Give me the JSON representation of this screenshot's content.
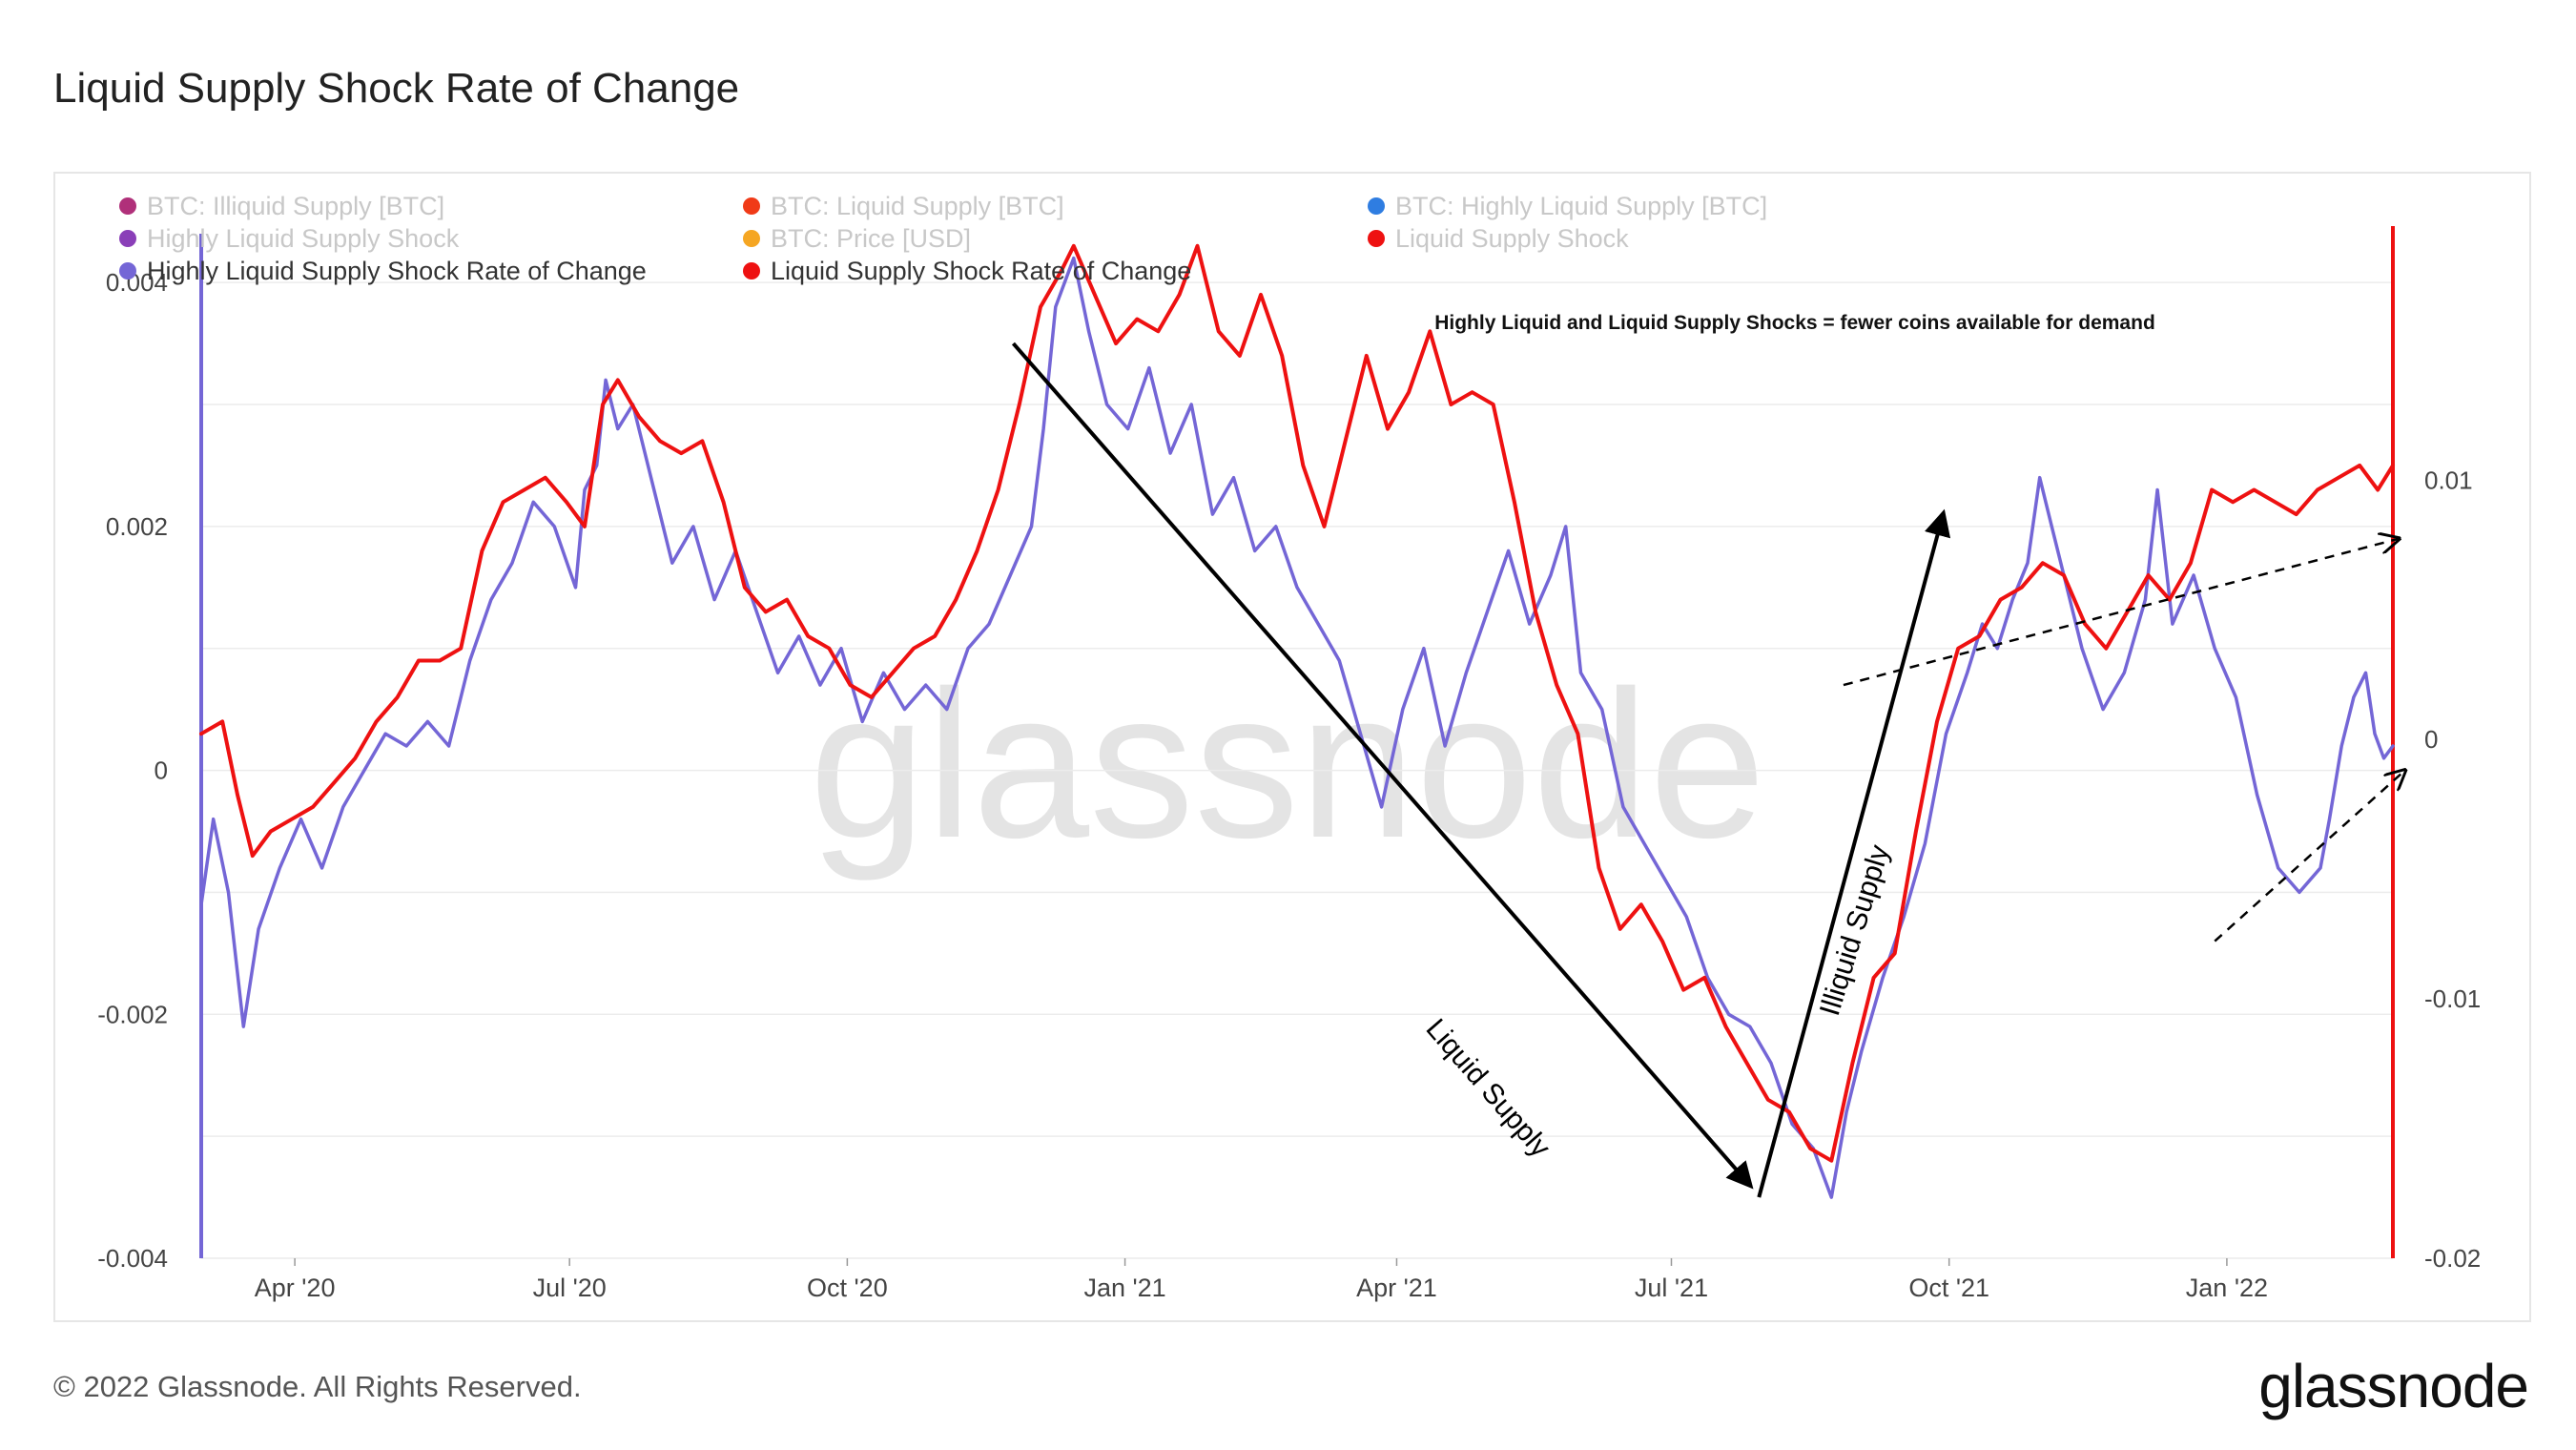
{
  "page": {
    "title": "Liquid Supply Shock Rate of Change",
    "copyright": "© 2022 Glassnode. All Rights Reserved.",
    "logo_text": "glassnode",
    "watermark": "glassnode"
  },
  "chart_data": {
    "type": "line",
    "title": "Liquid Supply Shock Rate of Change",
    "annotation_text": "Highly Liquid and Liquid Supply Shocks = fewer coins available for demand",
    "arrow_labels": [
      "Liquid Supply",
      "Illiquid Supply"
    ],
    "legend": [
      {
        "label": "BTC: Illiquid Supply [BTC]",
        "color": "#b0307a",
        "active": false
      },
      {
        "label": "BTC: Liquid Supply [BTC]",
        "color": "#f03a17",
        "active": false
      },
      {
        "label": "BTC: Highly Liquid Supply [BTC]",
        "color": "#2f7de1",
        "active": false
      },
      {
        "label": "Highly Liquid Supply Shock",
        "color": "#8a3fb8",
        "active": false
      },
      {
        "label": "BTC: Price [USD]",
        "color": "#f5a623",
        "active": false
      },
      {
        "label": "Liquid Supply Shock",
        "color": "#ee1111",
        "active": false
      },
      {
        "label": "Highly Liquid Supply Shock Rate of Change",
        "color": "#7466d6",
        "active": true
      },
      {
        "label": "Liquid Supply Shock Rate of Change",
        "color": "#ee1111",
        "active": true
      }
    ],
    "x_ticks": [
      "Apr '20",
      "Jul '20",
      "Oct '20",
      "Jan '21",
      "Apr '21",
      "Jul '21",
      "Oct '21",
      "Jan '22"
    ],
    "x_tick_dates": [
      "2020-04-01",
      "2020-07-01",
      "2020-10-01",
      "2021-01-01",
      "2021-04-01",
      "2021-07-01",
      "2021-10-01",
      "2022-01-01"
    ],
    "x_range": [
      "2020-03-01",
      "2022-02-25"
    ],
    "y_left": {
      "ticks": [
        "0.004",
        "0.002",
        "0",
        "-0.002",
        "-0.004"
      ],
      "tick_values": [
        0.004,
        0.002,
        0,
        -0.002,
        -0.004
      ],
      "range": [
        -0.004,
        0.0044
      ]
    },
    "y_right": {
      "ticks": [
        "0.01",
        "0",
        "-0.01",
        "-0.02"
      ],
      "tick_values": [
        0.01,
        0,
        -0.01,
        -0.02
      ],
      "range": [
        -0.02,
        0.0195
      ]
    },
    "series": [
      {
        "name": "Highly Liquid Supply Shock Rate of Change",
        "color": "#7466d6",
        "axis": "left",
        "points": [
          [
            "2020-03-01",
            -0.0011
          ],
          [
            "2020-03-05",
            -0.0004
          ],
          [
            "2020-03-10",
            -0.001
          ],
          [
            "2020-03-15",
            -0.0021
          ],
          [
            "2020-03-20",
            -0.0013
          ],
          [
            "2020-03-27",
            -0.0008
          ],
          [
            "2020-04-03",
            -0.0004
          ],
          [
            "2020-04-10",
            -0.0008
          ],
          [
            "2020-04-17",
            -0.0003
          ],
          [
            "2020-04-24",
            0.0
          ],
          [
            "2020-05-01",
            0.0003
          ],
          [
            "2020-05-08",
            0.0002
          ],
          [
            "2020-05-15",
            0.0004
          ],
          [
            "2020-05-22",
            0.0002
          ],
          [
            "2020-05-29",
            0.0009
          ],
          [
            "2020-06-05",
            0.0014
          ],
          [
            "2020-06-12",
            0.0017
          ],
          [
            "2020-06-19",
            0.0022
          ],
          [
            "2020-06-26",
            0.002
          ],
          [
            "2020-07-03",
            0.0015
          ],
          [
            "2020-07-06",
            0.0023
          ],
          [
            "2020-07-10",
            0.0025
          ],
          [
            "2020-07-13",
            0.0032
          ],
          [
            "2020-07-17",
            0.0028
          ],
          [
            "2020-07-22",
            0.003
          ],
          [
            "2020-07-28",
            0.0024
          ],
          [
            "2020-08-04",
            0.0017
          ],
          [
            "2020-08-11",
            0.002
          ],
          [
            "2020-08-18",
            0.0014
          ],
          [
            "2020-08-25",
            0.0018
          ],
          [
            "2020-09-01",
            0.0013
          ],
          [
            "2020-09-08",
            0.0008
          ],
          [
            "2020-09-15",
            0.0011
          ],
          [
            "2020-09-22",
            0.0007
          ],
          [
            "2020-09-29",
            0.001
          ],
          [
            "2020-10-06",
            0.0004
          ],
          [
            "2020-10-13",
            0.0008
          ],
          [
            "2020-10-20",
            0.0005
          ],
          [
            "2020-10-27",
            0.0007
          ],
          [
            "2020-11-03",
            0.0005
          ],
          [
            "2020-11-10",
            0.001
          ],
          [
            "2020-11-17",
            0.0012
          ],
          [
            "2020-11-24",
            0.0016
          ],
          [
            "2020-12-01",
            0.002
          ],
          [
            "2020-12-05",
            0.0028
          ],
          [
            "2020-12-09",
            0.0038
          ],
          [
            "2020-12-12",
            0.004
          ],
          [
            "2020-12-15",
            0.0042
          ],
          [
            "2020-12-20",
            0.0036
          ],
          [
            "2020-12-26",
            0.003
          ],
          [
            "2021-01-02",
            0.0028
          ],
          [
            "2021-01-09",
            0.0033
          ],
          [
            "2021-01-16",
            0.0026
          ],
          [
            "2021-01-23",
            0.003
          ],
          [
            "2021-01-30",
            0.0021
          ],
          [
            "2021-02-06",
            0.0024
          ],
          [
            "2021-02-13",
            0.0018
          ],
          [
            "2021-02-20",
            0.002
          ],
          [
            "2021-02-27",
            0.0015
          ],
          [
            "2021-03-06",
            0.0012
          ],
          [
            "2021-03-13",
            0.0009
          ],
          [
            "2021-03-20",
            0.0003
          ],
          [
            "2021-03-27",
            -0.0003
          ],
          [
            "2021-04-03",
            0.0005
          ],
          [
            "2021-04-10",
            0.001
          ],
          [
            "2021-04-17",
            0.0002
          ],
          [
            "2021-04-24",
            0.0008
          ],
          [
            "2021-05-01",
            0.0013
          ],
          [
            "2021-05-08",
            0.0018
          ],
          [
            "2021-05-15",
            0.0012
          ],
          [
            "2021-05-22",
            0.0016
          ],
          [
            "2021-05-27",
            0.002
          ],
          [
            "2021-06-01",
            0.0008
          ],
          [
            "2021-06-08",
            0.0005
          ],
          [
            "2021-06-15",
            -0.0003
          ],
          [
            "2021-06-22",
            -0.0006
          ],
          [
            "2021-06-29",
            -0.0009
          ],
          [
            "2021-07-06",
            -0.0012
          ],
          [
            "2021-07-13",
            -0.0017
          ],
          [
            "2021-07-20",
            -0.002
          ],
          [
            "2021-07-27",
            -0.0021
          ],
          [
            "2021-08-03",
            -0.0024
          ],
          [
            "2021-08-10",
            -0.0029
          ],
          [
            "2021-08-17",
            -0.0031
          ],
          [
            "2021-08-23",
            -0.0035
          ],
          [
            "2021-08-28",
            -0.0028
          ],
          [
            "2021-09-02",
            -0.0023
          ],
          [
            "2021-09-09",
            -0.0017
          ],
          [
            "2021-09-16",
            -0.0012
          ],
          [
            "2021-09-23",
            -0.0006
          ],
          [
            "2021-09-30",
            0.0003
          ],
          [
            "2021-10-07",
            0.0008
          ],
          [
            "2021-10-12",
            0.0012
          ],
          [
            "2021-10-17",
            0.001
          ],
          [
            "2021-10-22",
            0.0014
          ],
          [
            "2021-10-27",
            0.0017
          ],
          [
            "2021-10-31",
            0.0024
          ],
          [
            "2021-11-04",
            0.002
          ],
          [
            "2021-11-08",
            0.0016
          ],
          [
            "2021-11-14",
            0.001
          ],
          [
            "2021-11-21",
            0.0005
          ],
          [
            "2021-11-28",
            0.0008
          ],
          [
            "2021-12-05",
            0.0014
          ],
          [
            "2021-12-09",
            0.0023
          ],
          [
            "2021-12-14",
            0.0012
          ],
          [
            "2021-12-21",
            0.0016
          ],
          [
            "2021-12-28",
            0.001
          ],
          [
            "2022-01-04",
            0.0006
          ],
          [
            "2022-01-11",
            -0.0002
          ],
          [
            "2022-01-18",
            -0.0008
          ],
          [
            "2022-01-25",
            -0.001
          ],
          [
            "2022-02-01",
            -0.0008
          ],
          [
            "2022-02-04",
            -0.0004
          ],
          [
            "2022-02-08",
            0.0002
          ],
          [
            "2022-02-12",
            0.0006
          ],
          [
            "2022-02-16",
            0.0008
          ],
          [
            "2022-02-19",
            0.0003
          ],
          [
            "2022-02-22",
            0.0001
          ],
          [
            "2022-02-25",
            0.0002
          ]
        ]
      },
      {
        "name": "Liquid Supply Shock Rate of Change",
        "color": "#ee1111",
        "axis": "left",
        "points": [
          [
            "2020-03-01",
            0.0003
          ],
          [
            "2020-03-08",
            0.0004
          ],
          [
            "2020-03-13",
            -0.0002
          ],
          [
            "2020-03-18",
            -0.0007
          ],
          [
            "2020-03-24",
            -0.0005
          ],
          [
            "2020-03-31",
            -0.0004
          ],
          [
            "2020-04-07",
            -0.0003
          ],
          [
            "2020-04-14",
            -0.0001
          ],
          [
            "2020-04-21",
            0.0001
          ],
          [
            "2020-04-28",
            0.0004
          ],
          [
            "2020-05-05",
            0.0006
          ],
          [
            "2020-05-12",
            0.0009
          ],
          [
            "2020-05-19",
            0.0009
          ],
          [
            "2020-05-26",
            0.001
          ],
          [
            "2020-06-02",
            0.0018
          ],
          [
            "2020-06-09",
            0.0022
          ],
          [
            "2020-06-16",
            0.0023
          ],
          [
            "2020-06-23",
            0.0024
          ],
          [
            "2020-06-30",
            0.0022
          ],
          [
            "2020-07-06",
            0.002
          ],
          [
            "2020-07-12",
            0.003
          ],
          [
            "2020-07-17",
            0.0032
          ],
          [
            "2020-07-24",
            0.0029
          ],
          [
            "2020-07-31",
            0.0027
          ],
          [
            "2020-08-07",
            0.0026
          ],
          [
            "2020-08-14",
            0.0027
          ],
          [
            "2020-08-21",
            0.0022
          ],
          [
            "2020-08-28",
            0.0015
          ],
          [
            "2020-09-04",
            0.0013
          ],
          [
            "2020-09-11",
            0.0014
          ],
          [
            "2020-09-18",
            0.0011
          ],
          [
            "2020-09-25",
            0.001
          ],
          [
            "2020-10-02",
            0.0007
          ],
          [
            "2020-10-09",
            0.0006
          ],
          [
            "2020-10-16",
            0.0008
          ],
          [
            "2020-10-23",
            0.001
          ],
          [
            "2020-10-30",
            0.0011
          ],
          [
            "2020-11-06",
            0.0014
          ],
          [
            "2020-11-13",
            0.0018
          ],
          [
            "2020-11-20",
            0.0023
          ],
          [
            "2020-11-27",
            0.003
          ],
          [
            "2020-12-04",
            0.0038
          ],
          [
            "2020-12-11",
            0.0041
          ],
          [
            "2020-12-15",
            0.0043
          ],
          [
            "2020-12-22",
            0.0039
          ],
          [
            "2020-12-29",
            0.0035
          ],
          [
            "2021-01-05",
            0.0037
          ],
          [
            "2021-01-12",
            0.0036
          ],
          [
            "2021-01-19",
            0.0039
          ],
          [
            "2021-01-25",
            0.0043
          ],
          [
            "2021-02-01",
            0.0036
          ],
          [
            "2021-02-08",
            0.0034
          ],
          [
            "2021-02-15",
            0.0039
          ],
          [
            "2021-02-22",
            0.0034
          ],
          [
            "2021-03-01",
            0.0025
          ],
          [
            "2021-03-08",
            0.002
          ],
          [
            "2021-03-15",
            0.0027
          ],
          [
            "2021-03-22",
            0.0034
          ],
          [
            "2021-03-29",
            0.0028
          ],
          [
            "2021-04-05",
            0.0031
          ],
          [
            "2021-04-12",
            0.0036
          ],
          [
            "2021-04-19",
            0.003
          ],
          [
            "2021-04-26",
            0.0031
          ],
          [
            "2021-05-03",
            0.003
          ],
          [
            "2021-05-10",
            0.0022
          ],
          [
            "2021-05-17",
            0.0013
          ],
          [
            "2021-05-24",
            0.0007
          ],
          [
            "2021-05-31",
            0.0003
          ],
          [
            "2021-06-07",
            -0.0008
          ],
          [
            "2021-06-14",
            -0.0013
          ],
          [
            "2021-06-21",
            -0.0011
          ],
          [
            "2021-06-28",
            -0.0014
          ],
          [
            "2021-07-05",
            -0.0018
          ],
          [
            "2021-07-12",
            -0.0017
          ],
          [
            "2021-07-19",
            -0.0021
          ],
          [
            "2021-07-26",
            -0.0024
          ],
          [
            "2021-08-02",
            -0.0027
          ],
          [
            "2021-08-09",
            -0.0028
          ],
          [
            "2021-08-16",
            -0.0031
          ],
          [
            "2021-08-23",
            -0.0032
          ],
          [
            "2021-08-30",
            -0.0024
          ],
          [
            "2021-09-06",
            -0.0017
          ],
          [
            "2021-09-13",
            -0.0015
          ],
          [
            "2021-09-20",
            -0.0005
          ],
          [
            "2021-09-27",
            0.0004
          ],
          [
            "2021-10-04",
            0.001
          ],
          [
            "2021-10-11",
            0.0011
          ],
          [
            "2021-10-18",
            0.0014
          ],
          [
            "2021-10-25",
            0.0015
          ],
          [
            "2021-11-01",
            0.0017
          ],
          [
            "2021-11-08",
            0.0016
          ],
          [
            "2021-11-15",
            0.0012
          ],
          [
            "2021-11-22",
            0.001
          ],
          [
            "2021-11-29",
            0.0013
          ],
          [
            "2021-12-06",
            0.0016
          ],
          [
            "2021-12-13",
            0.0014
          ],
          [
            "2021-12-20",
            0.0017
          ],
          [
            "2021-12-27",
            0.0023
          ],
          [
            "2022-01-03",
            0.0022
          ],
          [
            "2022-01-10",
            0.0023
          ],
          [
            "2022-01-17",
            0.0022
          ],
          [
            "2022-01-24",
            0.0021
          ],
          [
            "2022-01-31",
            0.0023
          ],
          [
            "2022-02-07",
            0.0024
          ],
          [
            "2022-02-14",
            0.0025
          ],
          [
            "2022-02-20",
            0.0023
          ],
          [
            "2022-02-25",
            0.0025
          ]
        ]
      }
    ],
    "trend_arrows": [
      {
        "style": "solid",
        "from": [
          "2020-11-25",
          0.0035
        ],
        "to": [
          "2021-07-27",
          -0.0034
        ]
      },
      {
        "style": "solid",
        "from": [
          "2021-07-30",
          -0.0035
        ],
        "to": [
          "2021-09-29",
          0.0021
        ]
      },
      {
        "style": "dashed",
        "from": [
          "2021-08-27",
          0.0007
        ],
        "to": [
          "2022-02-27",
          0.0019
        ]
      },
      {
        "style": "dashed",
        "from": [
          "2021-12-28",
          -0.0014
        ],
        "to": [
          "2022-02-29",
          0.0
        ]
      }
    ]
  }
}
